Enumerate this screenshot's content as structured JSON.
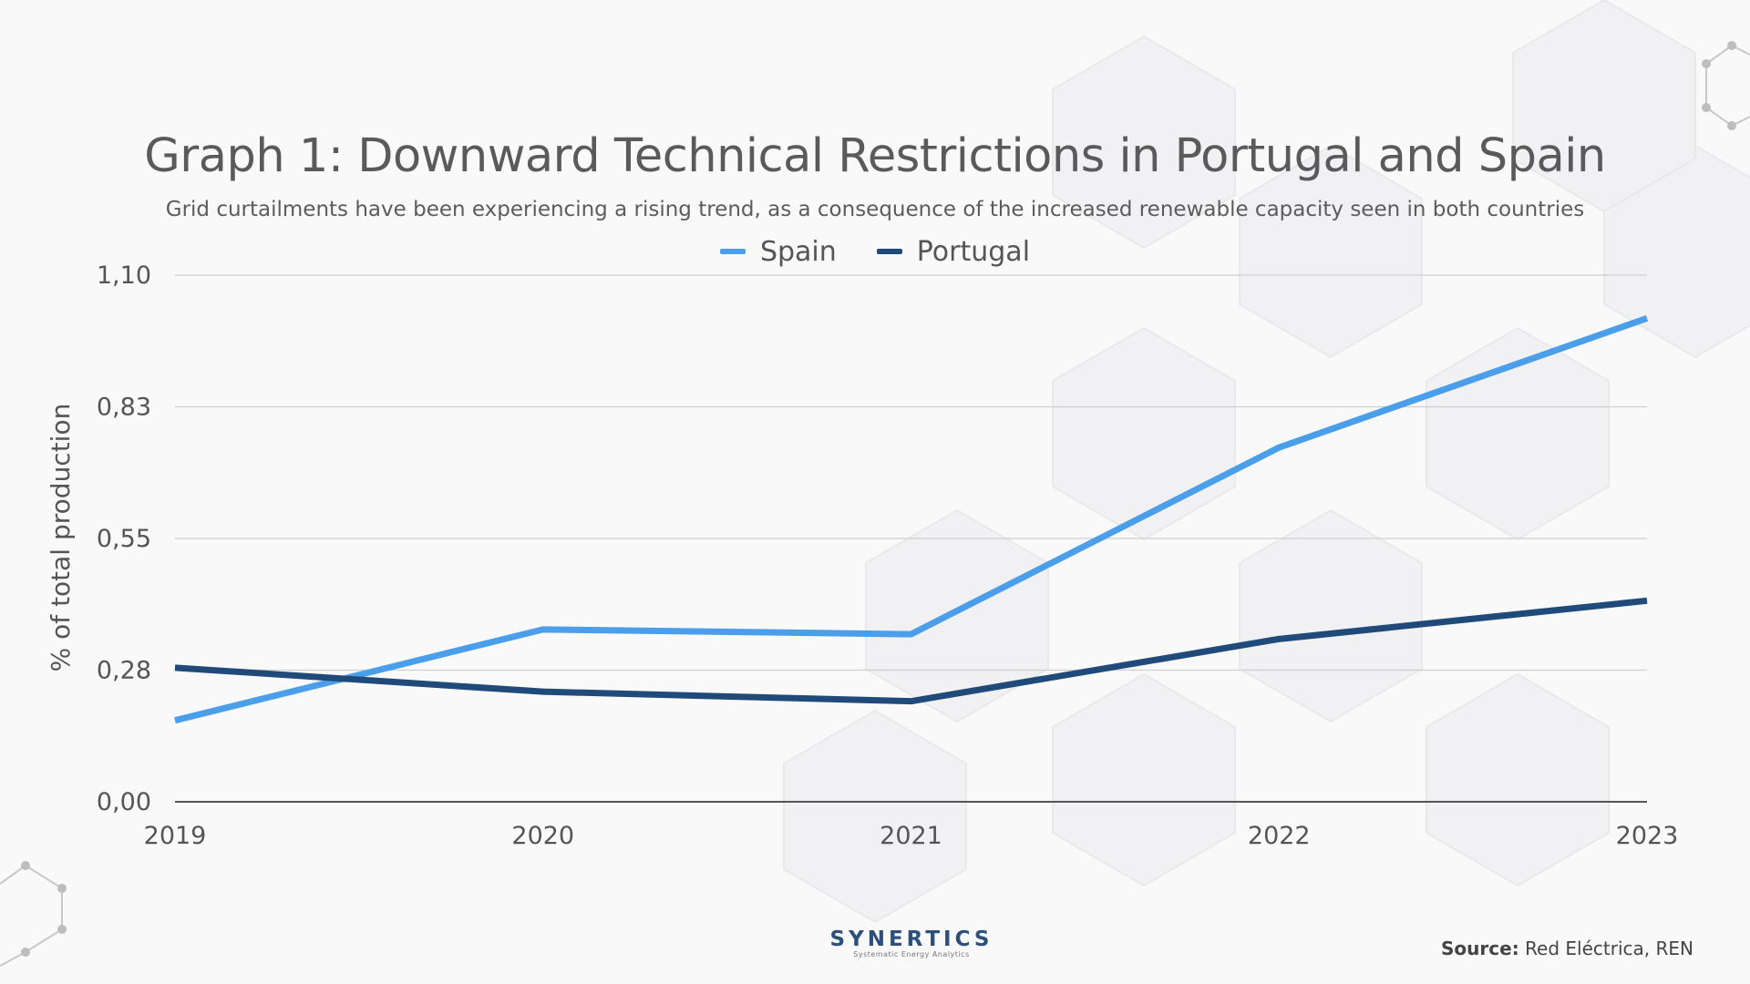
{
  "title": "Graph 1: Downward Technical Restrictions in Portugal and Spain",
  "subtitle": "Grid curtailments have been experiencing a rising trend, as a consequence of the increased renewable capacity seen in both countries",
  "chart_data": {
    "type": "line",
    "title": "Graph 1: Downward Technical Restrictions in Portugal and Spain",
    "xlabel": "",
    "ylabel": "% of total production",
    "categories": [
      "2019",
      "2020",
      "2021",
      "2022",
      "2023"
    ],
    "ylim": [
      0,
      1.1
    ],
    "yticks": [
      "0,00",
      "0,28",
      "0,55",
      "0,83",
      "1,10"
    ],
    "ytick_values": [
      0,
      0.275,
      0.55,
      0.825,
      1.1
    ],
    "grid": true,
    "legend_position": "top-center",
    "series": [
      {
        "name": "Spain",
        "color": "#4a9eea",
        "values": [
          0.17,
          0.36,
          0.35,
          0.74,
          1.01
        ]
      },
      {
        "name": "Portugal",
        "color": "#1f4a7a",
        "values": [
          0.28,
          0.23,
          0.21,
          0.34,
          0.42
        ]
      }
    ]
  },
  "logo": {
    "name": "SYNERTICS",
    "tagline": "Systematic Energy Analytics"
  },
  "source": {
    "label": "Source:",
    "text": "Red Eléctrica, REN"
  },
  "colors": {
    "background": "#f9f9fa",
    "grid": "#cfcfcf",
    "axis": "#555555"
  }
}
